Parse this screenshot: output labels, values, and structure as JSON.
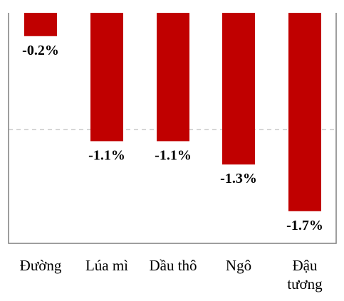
{
  "chart_data": {
    "type": "bar",
    "categories": [
      [
        "Đường"
      ],
      [
        "Lúa mì"
      ],
      [
        "Dầu thô"
      ],
      [
        "Ngô"
      ],
      [
        "Đậu",
        "tương"
      ]
    ],
    "values": [
      -0.2,
      -1.1,
      -1.1,
      -1.3,
      -1.7
    ],
    "data_labels": [
      "-0.2%",
      "-1.1%",
      "-1.1%",
      "-1.3%",
      "-1.7%"
    ],
    "title": "",
    "xlabel": "",
    "ylabel": "",
    "ylim": [
      -2.0,
      0
    ],
    "reference_line": -1.0,
    "grid": false,
    "legend": "none",
    "colors": {
      "bar": "#c00000",
      "reference_line": "#c8c8c8",
      "frame": "#7f7f7f"
    }
  }
}
